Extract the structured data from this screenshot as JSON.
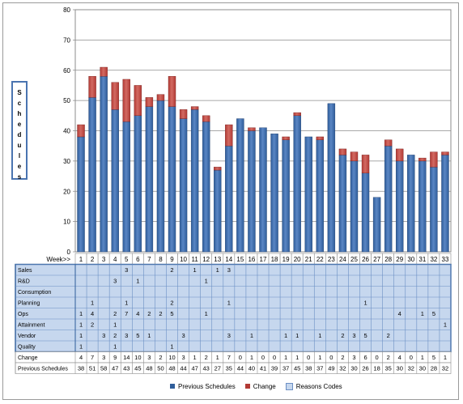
{
  "ylabel": "Schedules",
  "chart_data": {
    "type": "bar",
    "stacked": true,
    "xlabel": "Week>>",
    "ylabel": "Schedules",
    "ylim": [
      0,
      80
    ],
    "yticks": [
      0,
      10,
      20,
      30,
      40,
      50,
      60,
      70,
      80
    ],
    "categories": [
      "1",
      "2",
      "3",
      "4",
      "5",
      "6",
      "7",
      "8",
      "9",
      "10",
      "11",
      "12",
      "13",
      "14",
      "15",
      "16",
      "17",
      "18",
      "19",
      "20",
      "21",
      "22",
      "23",
      "24",
      "25",
      "26",
      "27",
      "28",
      "29",
      "30",
      "31",
      "32",
      "33"
    ],
    "series": [
      {
        "name": "Previous Schedules",
        "color": "#2f5d9a",
        "values": [
          38,
          51,
          58,
          47,
          43,
          45,
          48,
          50,
          48,
          44,
          47,
          43,
          27,
          35,
          44,
          40,
          41,
          39,
          37,
          45,
          38,
          37,
          49,
          32,
          30,
          26,
          18,
          35,
          30,
          32,
          30,
          28,
          32
        ]
      },
      {
        "name": "Change",
        "color": "#b23a35",
        "values": [
          4,
          7,
          3,
          9,
          14,
          10,
          3,
          2,
          10,
          3,
          1,
          2,
          1,
          7,
          0,
          1,
          0,
          0,
          1,
          1,
          0,
          1,
          0,
          2,
          3,
          6,
          0,
          2,
          4,
          0,
          1,
          5,
          1
        ]
      }
    ],
    "legend": {
      "position": "bottom",
      "items": [
        "Previous Schedules",
        "Change",
        "Reasons Codes"
      ]
    }
  },
  "table": {
    "reason_color": "#c6d7ee",
    "rows": [
      {
        "label": "Sales",
        "cells": [
          "",
          "",
          "",
          "",
          "3",
          "",
          "",
          "",
          "2",
          "",
          "1",
          "",
          "1",
          "3",
          "",
          "",
          "",
          "",
          "",
          "",
          "",
          "",
          "",
          "",
          "",
          "",
          "",
          "",
          "",
          "",
          "",
          "",
          ""
        ]
      },
      {
        "label": "R&D",
        "cells": [
          "",
          "",
          "",
          "3",
          "",
          "1",
          "",
          "",
          "",
          "",
          "",
          "1",
          "",
          "",
          "",
          "",
          "",
          "",
          "",
          "",
          "",
          "",
          "",
          "",
          "",
          "",
          "",
          "",
          "",
          "",
          "",
          "",
          ""
        ]
      },
      {
        "label": "Consumption",
        "cells": [
          "",
          "",
          "",
          "",
          "",
          "",
          "",
          "",
          "",
          "",
          "",
          "",
          "",
          "",
          "",
          "",
          "",
          "",
          "",
          "",
          "",
          "",
          "",
          "",
          "",
          "",
          "",
          "",
          "",
          "",
          "",
          "",
          ""
        ]
      },
      {
        "label": "Planning",
        "cells": [
          "",
          "1",
          "",
          "",
          "1",
          "",
          "",
          "",
          "2",
          "",
          "",
          "",
          "",
          "1",
          "",
          "",
          "",
          "",
          "",
          "",
          "",
          "",
          "",
          "",
          "",
          "1",
          "",
          "",
          "",
          "",
          "",
          "",
          ""
        ]
      },
      {
        "label": "Ops",
        "cells": [
          "1",
          "4",
          "",
          "2",
          "7",
          "4",
          "2",
          "2",
          "5",
          "",
          "",
          "1",
          "",
          "",
          "",
          "",
          "",
          "",
          "",
          "",
          "",
          "",
          "",
          "",
          "",
          "",
          "",
          "",
          "4",
          "",
          "1",
          "5",
          ""
        ]
      },
      {
        "label": "Attainment",
        "cells": [
          "1",
          "2",
          "",
          "1",
          "",
          "",
          "",
          "",
          "",
          "",
          "",
          "",
          "",
          "",
          "",
          "",
          "",
          "",
          "",
          "",
          "",
          "",
          "",
          "",
          "",
          "",
          "",
          "",
          "",
          "",
          "",
          "",
          "1"
        ]
      },
      {
        "label": "Vendor",
        "cells": [
          "1",
          "",
          "3",
          "2",
          "3",
          "5",
          "1",
          "",
          "",
          "3",
          "",
          "",
          "",
          "3",
          "",
          "1",
          "",
          "",
          "1",
          "1",
          "",
          "1",
          "",
          "2",
          "3",
          "5",
          "",
          "2",
          "",
          "",
          "",
          "",
          ""
        ]
      },
      {
        "label": "Quality",
        "cells": [
          "1",
          "",
          "",
          "1",
          "",
          "",
          "",
          "",
          "1",
          "",
          "",
          "",
          "",
          "",
          "",
          "",
          "",
          "",
          "",
          "",
          "",
          "",
          "",
          "",
          "",
          "",
          "",
          "",
          "",
          "",
          "",
          "",
          ""
        ]
      }
    ],
    "summary_rows": [
      {
        "label": "Change",
        "cells": [
          "4",
          "7",
          "3",
          "9",
          "14",
          "10",
          "3",
          "2",
          "10",
          "3",
          "1",
          "2",
          "1",
          "7",
          "0",
          "1",
          "0",
          "0",
          "1",
          "1",
          "0",
          "1",
          "0",
          "2",
          "3",
          "6",
          "0",
          "2",
          "4",
          "0",
          "1",
          "5",
          "1"
        ]
      },
      {
        "label": "Previous Schedules",
        "cells": [
          "38",
          "51",
          "58",
          "47",
          "43",
          "45",
          "48",
          "50",
          "48",
          "44",
          "47",
          "43",
          "27",
          "35",
          "44",
          "40",
          "41",
          "39",
          "37",
          "45",
          "38",
          "37",
          "49",
          "32",
          "30",
          "26",
          "18",
          "35",
          "30",
          "32",
          "30",
          "28",
          "32"
        ]
      }
    ]
  }
}
